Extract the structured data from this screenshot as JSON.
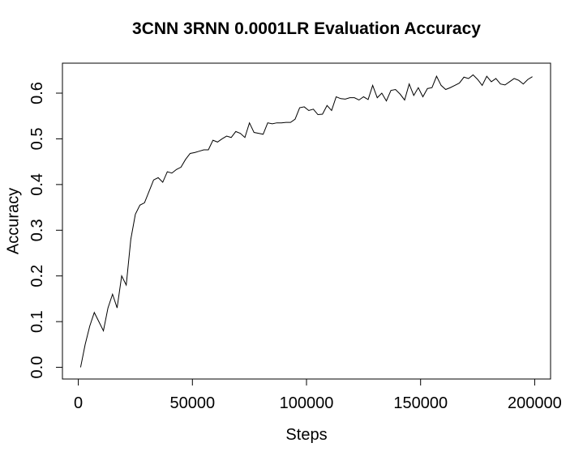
{
  "chart_data": {
    "type": "line",
    "title": "3CNN 3RNN 0.0001LR Evaluation Accuracy",
    "xlabel": "Steps",
    "ylabel": "Accuracy",
    "x": [
      1000,
      3000,
      5000,
      7000,
      9000,
      11000,
      13000,
      15000,
      17000,
      19000,
      21000,
      23000,
      25000,
      27000,
      29000,
      31000,
      33000,
      35000,
      37000,
      39000,
      41000,
      43000,
      45000,
      47000,
      49000,
      51000,
      53000,
      55000,
      57000,
      59000,
      61000,
      63000,
      65000,
      67000,
      69000,
      71000,
      73000,
      75000,
      77000,
      79000,
      81000,
      83000,
      85000,
      87000,
      89000,
      91000,
      93000,
      95000,
      97000,
      99000,
      101000,
      103000,
      105000,
      107000,
      109000,
      111000,
      113000,
      115000,
      117000,
      119000,
      121000,
      123000,
      125000,
      127000,
      129000,
      131000,
      133000,
      135000,
      137000,
      139000,
      141000,
      143000,
      145000,
      147000,
      149000,
      151000,
      153000,
      155000,
      157000,
      159000,
      161000,
      163000,
      165000,
      167000,
      169000,
      171000,
      173000,
      175000,
      177000,
      179000,
      181000,
      183000,
      185000,
      187000,
      189000,
      191000,
      193000,
      195000,
      197000,
      199000
    ],
    "series": [
      {
        "name": "Accuracy",
        "color": "#000000",
        "values": [
          0.0,
          0.05,
          0.09,
          0.12,
          0.1,
          0.08,
          0.13,
          0.16,
          0.13,
          0.2,
          0.18,
          0.28,
          0.335,
          0.355,
          0.36,
          0.385,
          0.41,
          0.415,
          0.405,
          0.428,
          0.425,
          0.433,
          0.438,
          0.455,
          0.468,
          0.47,
          0.473,
          0.476,
          0.476,
          0.497,
          0.493,
          0.5,
          0.506,
          0.503,
          0.516,
          0.512,
          0.503,
          0.535,
          0.514,
          0.512,
          0.51,
          0.535,
          0.533,
          0.535,
          0.535,
          0.536,
          0.536,
          0.543,
          0.568,
          0.57,
          0.562,
          0.565,
          0.553,
          0.554,
          0.573,
          0.562,
          0.592,
          0.588,
          0.587,
          0.59,
          0.59,
          0.585,
          0.592,
          0.586,
          0.617,
          0.59,
          0.6,
          0.583,
          0.606,
          0.608,
          0.598,
          0.585,
          0.62,
          0.595,
          0.612,
          0.592,
          0.61,
          0.612,
          0.637,
          0.617,
          0.608,
          0.612,
          0.617,
          0.622,
          0.635,
          0.632,
          0.64,
          0.63,
          0.617,
          0.637,
          0.625,
          0.632,
          0.62,
          0.618,
          0.625,
          0.632,
          0.628,
          0.62,
          0.63,
          0.636
        ]
      }
    ],
    "xlim": [
      -6960,
      206960
    ],
    "ylim": [
      -0.0256,
      0.6656
    ],
    "xticks": [
      0,
      50000,
      100000,
      150000,
      200000
    ],
    "yticks": [
      {
        "value": 0,
        "label": "0.0"
      },
      0.1,
      0.2,
      0.3,
      0.4,
      0.5,
      0.6
    ]
  }
}
